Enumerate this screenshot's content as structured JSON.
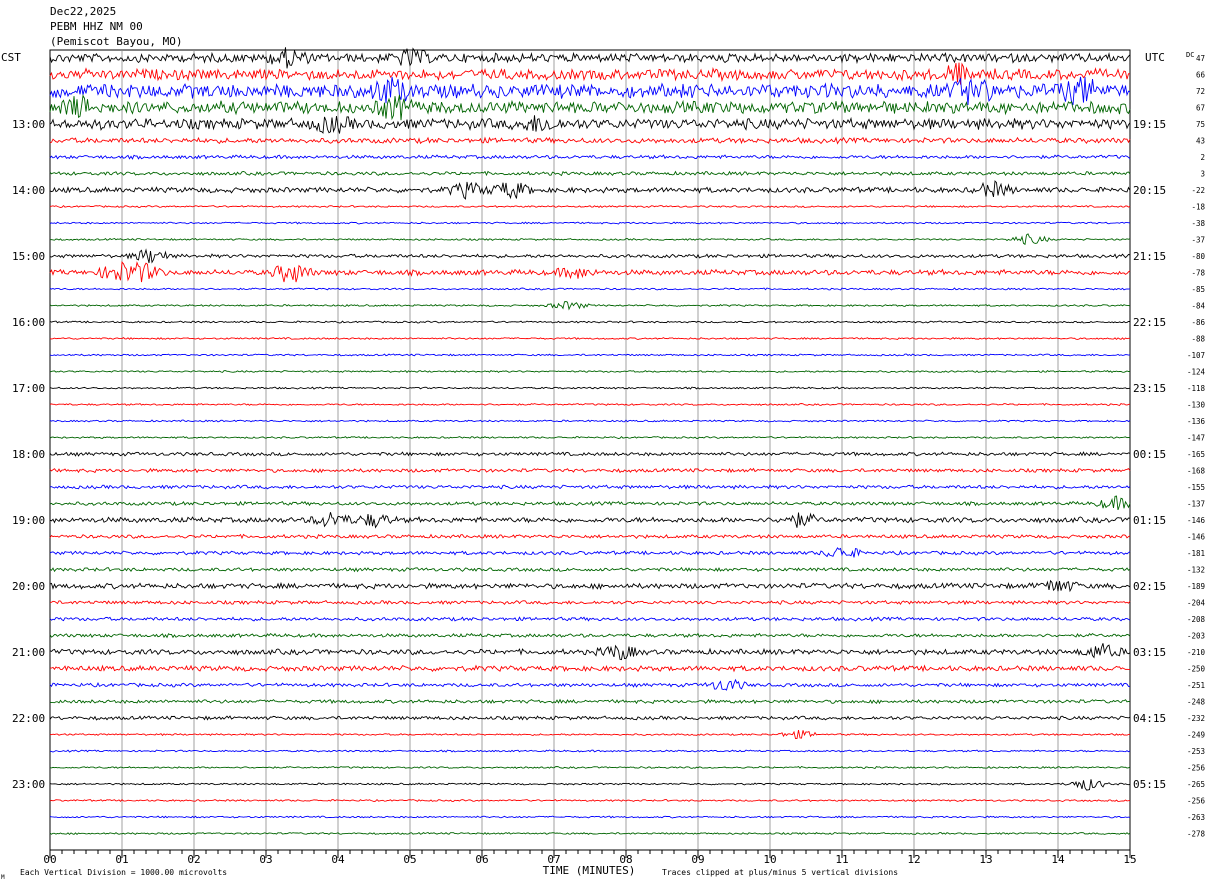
{
  "header": {
    "date": "Dec22,2025",
    "station": "PEBM HHZ NM 00",
    "location": "(Pemiscot Bayou, MO)"
  },
  "chart_data": {
    "type": "line",
    "title": "PEBM HHZ NM 00",
    "left_timezone": "CST",
    "right_timezone": "UTC",
    "dc_label": "DC",
    "xlabel": "TIME (MINUTES)",
    "xlim": [
      0,
      15
    ],
    "x_ticks": [
      "00",
      "01",
      "02",
      "03",
      "04",
      "05",
      "06",
      "07",
      "08",
      "09",
      "10",
      "11",
      "12",
      "13",
      "14",
      "15"
    ],
    "footer_left": "Each Vertical Division = 1000.00 microvolts",
    "footer_right": "Traces clipped at plus/minus 5 vertical divisions",
    "corner_mark": "M",
    "colors": [
      "#000000",
      "#ff0000",
      "#0000ff",
      "#006400"
    ],
    "left_time_labels": [
      {
        "row": 4,
        "label": "13:00"
      },
      {
        "row": 8,
        "label": "14:00"
      },
      {
        "row": 12,
        "label": "15:00"
      },
      {
        "row": 16,
        "label": "16:00"
      },
      {
        "row": 20,
        "label": "17:00"
      },
      {
        "row": 24,
        "label": "18:00"
      },
      {
        "row": 28,
        "label": "19:00"
      },
      {
        "row": 32,
        "label": "20:00"
      },
      {
        "row": 36,
        "label": "21:00"
      },
      {
        "row": 40,
        "label": "22:00"
      },
      {
        "row": 44,
        "label": "23:00"
      }
    ],
    "right_time_labels": [
      {
        "row": 4,
        "label": "19:15"
      },
      {
        "row": 8,
        "label": "20:15"
      },
      {
        "row": 12,
        "label": "21:15"
      },
      {
        "row": 16,
        "label": "22:15"
      },
      {
        "row": 20,
        "label": "23:15"
      },
      {
        "row": 24,
        "label": "00:15"
      },
      {
        "row": 28,
        "label": "01:15"
      },
      {
        "row": 32,
        "label": "02:15"
      },
      {
        "row": 36,
        "label": "03:15"
      },
      {
        "row": 40,
        "label": "04:15"
      },
      {
        "row": 44,
        "label": "05:15"
      }
    ],
    "dc_offsets": [
      "47",
      "66",
      "72",
      "67",
      "75",
      "43",
      "2",
      "3",
      "-22",
      "-18",
      "-38",
      "-37",
      "-80",
      "-78",
      "-85",
      "-84",
      "-86",
      "-88",
      "-107",
      "-124",
      "-118",
      "-130",
      "-136",
      "-147",
      "-165",
      "-168",
      "-155",
      "-137",
      "-146",
      "-146",
      "-181",
      "-132",
      "-189",
      "-204",
      "-208",
      "-203",
      "-210",
      "-250",
      "-251",
      "-248",
      "-232",
      "-249",
      "-253",
      "-256",
      "-265",
      "-256",
      "-263",
      "-278"
    ],
    "row_amplitude": [
      5,
      6,
      8,
      7,
      6,
      3,
      2,
      2,
      3,
      1,
      1,
      1,
      2,
      3,
      1,
      1,
      1,
      1,
      1,
      1,
      1,
      1,
      1,
      1,
      2,
      2,
      2,
      2,
      3,
      2,
      2,
      2,
      3,
      2,
      2,
      2,
      3,
      3,
      2,
      2,
      2,
      1,
      1,
      1,
      1,
      1,
      1,
      1
    ],
    "events": [
      {
        "row": 0,
        "min": 3.3,
        "amp": 8
      },
      {
        "row": 0,
        "min": 5.0,
        "amp": 7
      },
      {
        "row": 1,
        "min": 12.6,
        "amp": 8
      },
      {
        "row": 2,
        "min": 4.7,
        "amp": 10
      },
      {
        "row": 2,
        "min": 12.8,
        "amp": 12
      },
      {
        "row": 2,
        "min": 14.3,
        "amp": 12
      },
      {
        "row": 3,
        "min": 0.4,
        "amp": 8
      },
      {
        "row": 3,
        "min": 4.8,
        "amp": 9
      },
      {
        "row": 4,
        "min": 3.9,
        "amp": 6
      },
      {
        "row": 4,
        "min": 6.8,
        "amp": 6
      },
      {
        "row": 8,
        "min": 5.8,
        "amp": 7
      },
      {
        "row": 8,
        "min": 6.4,
        "amp": 8
      },
      {
        "row": 8,
        "min": 13.1,
        "amp": 7
      },
      {
        "row": 11,
        "min": 13.6,
        "amp": 5
      },
      {
        "row": 12,
        "min": 1.4,
        "amp": 7
      },
      {
        "row": 13,
        "min": 0.95,
        "amp": 9
      },
      {
        "row": 13,
        "min": 1.3,
        "amp": 8
      },
      {
        "row": 13,
        "min": 3.35,
        "amp": 10
      },
      {
        "row": 13,
        "min": 7.3,
        "amp": 5
      },
      {
        "row": 15,
        "min": 7.2,
        "amp": 4
      },
      {
        "row": 27,
        "min": 14.8,
        "amp": 6
      },
      {
        "row": 28,
        "min": 3.9,
        "amp": 7
      },
      {
        "row": 28,
        "min": 4.5,
        "amp": 6
      },
      {
        "row": 28,
        "min": 10.4,
        "amp": 6
      },
      {
        "row": 30,
        "min": 11.0,
        "amp": 6
      },
      {
        "row": 32,
        "min": 14.0,
        "amp": 6
      },
      {
        "row": 36,
        "min": 7.9,
        "amp": 7
      },
      {
        "row": 36,
        "min": 14.6,
        "amp": 7
      },
      {
        "row": 38,
        "min": 9.4,
        "amp": 6
      },
      {
        "row": 41,
        "min": 10.4,
        "amp": 4
      },
      {
        "row": 44,
        "min": 14.4,
        "amp": 6
      }
    ]
  }
}
